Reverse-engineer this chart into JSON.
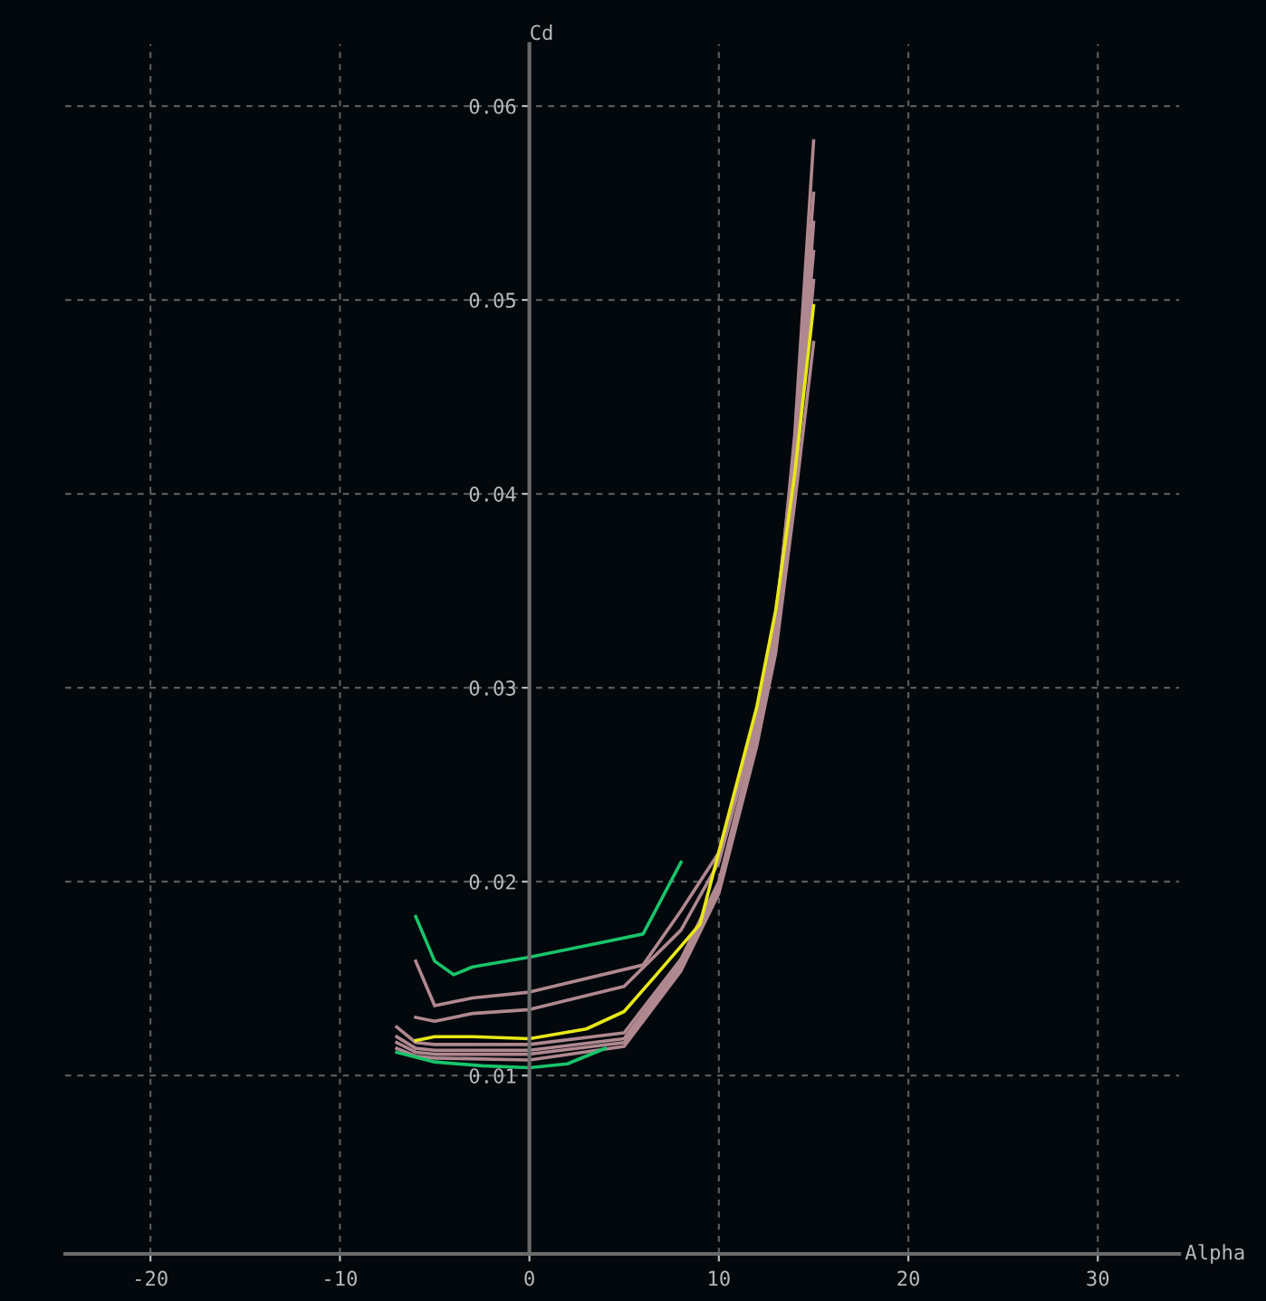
{
  "chart_data": {
    "type": "line",
    "xlabel": "Alpha",
    "ylabel": "Cd",
    "xlim": [
      -24.5,
      34.3
    ],
    "ylim": [
      0.0008,
      0.0632
    ],
    "xticks": [
      -20,
      -10,
      0,
      10,
      20,
      30
    ],
    "yticks": [
      0.01,
      0.02,
      0.03,
      0.04,
      0.05,
      0.06
    ],
    "grid": true,
    "line_style": "solid",
    "marker": "none",
    "legend": false,
    "series": [
      {
        "color": "#19c46a",
        "x": [
          -6,
          -5,
          -4,
          -3,
          0,
          4,
          6,
          8
        ],
        "values": [
          0.0182,
          0.0159,
          0.0152,
          0.0156,
          0.0161,
          0.0169,
          0.0173,
          0.021
        ]
      },
      {
        "color": "#b08890",
        "x": [
          -6,
          -5,
          -3,
          0,
          6,
          8,
          10,
          12,
          13,
          14,
          15
        ],
        "values": [
          0.0159,
          0.0136,
          0.014,
          0.0143,
          0.0157,
          0.0185,
          0.0215,
          0.0285,
          0.0335,
          0.042,
          0.0525
        ]
      },
      {
        "color": "#b08890",
        "x": [
          -6,
          -5,
          -3,
          0,
          5,
          8,
          10,
          12,
          13,
          14,
          15
        ],
        "values": [
          0.013,
          0.0128,
          0.0132,
          0.0134,
          0.0146,
          0.0175,
          0.021,
          0.0282,
          0.0335,
          0.0425,
          0.0555
        ]
      },
      {
        "color": "#b08890",
        "x": [
          -7,
          -6,
          -5,
          0,
          5,
          8,
          10,
          12,
          13,
          14,
          15
        ],
        "values": [
          0.0125,
          0.0117,
          0.0116,
          0.0116,
          0.0122,
          0.016,
          0.02,
          0.0278,
          0.033,
          0.043,
          0.0582
        ]
      },
      {
        "color": "#b08890",
        "x": [
          -7,
          -6,
          -5,
          0,
          5,
          8,
          10,
          12,
          13,
          14,
          15
        ],
        "values": [
          0.012,
          0.0114,
          0.0113,
          0.0113,
          0.0119,
          0.0158,
          0.0198,
          0.0275,
          0.0325,
          0.041,
          0.054
        ]
      },
      {
        "color": "#b08890",
        "x": [
          -7,
          -6,
          -5,
          0,
          5,
          8,
          10,
          12,
          13,
          14,
          15
        ],
        "values": [
          0.0117,
          0.0112,
          0.0111,
          0.0111,
          0.0117,
          0.0156,
          0.0196,
          0.0272,
          0.032,
          0.0405,
          0.051
        ]
      },
      {
        "color": "#b08890",
        "x": [
          -7,
          -6,
          -5,
          0,
          5,
          8,
          10,
          12,
          13,
          14,
          15
        ],
        "values": [
          0.0114,
          0.011,
          0.0109,
          0.0108,
          0.0115,
          0.0154,
          0.0194,
          0.027,
          0.0318,
          0.0395,
          0.0478
        ]
      },
      {
        "color": "#e8e818",
        "x": [
          -6,
          -5,
          -3,
          0,
          3,
          5,
          6.7,
          9,
          12,
          13,
          14,
          15
        ],
        "values": [
          0.0118,
          0.012,
          0.012,
          0.0119,
          0.0124,
          0.0133,
          0.0152,
          0.0178,
          0.029,
          0.034,
          0.041,
          0.0497
        ]
      },
      {
        "color": "#19c46a",
        "x": [
          -7,
          -5,
          -2.5,
          0,
          2,
          4
        ],
        "values": [
          0.0112,
          0.0107,
          0.0105,
          0.0104,
          0.0106,
          0.0114
        ]
      }
    ]
  }
}
